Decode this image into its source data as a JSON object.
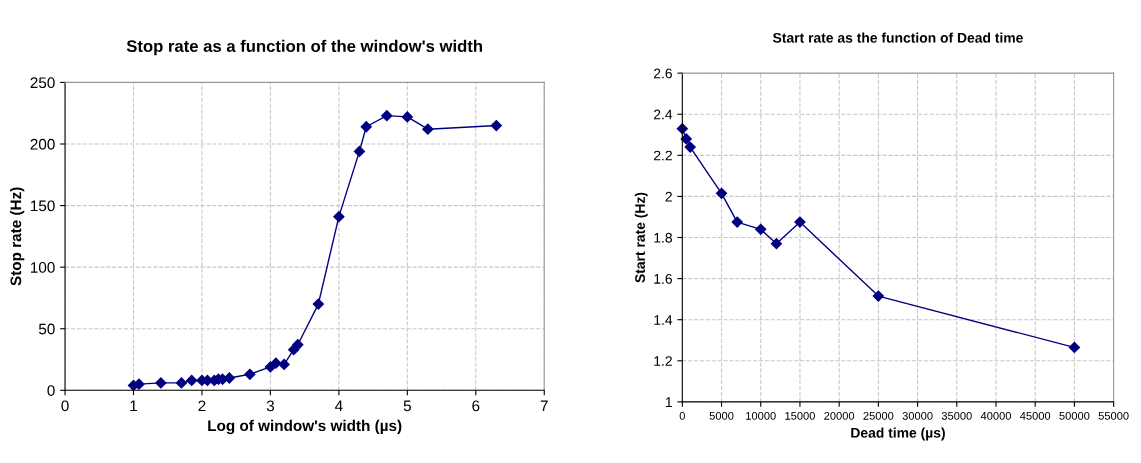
{
  "chart_data": [
    {
      "type": "line",
      "title": "Stop rate as a function of the window's width",
      "xlabel": "Log of window's width (µs)",
      "ylabel": "Stop rate (Hz)",
      "x": [
        1,
        1.08,
        1.4,
        1.7,
        1.85,
        2,
        2.08,
        2.18,
        2.24,
        2.3,
        2.4,
        2.7,
        3,
        3.08,
        3.2,
        3.34,
        3.4,
        3.7,
        4,
        4.3,
        4.4,
        4.7,
        5,
        5.3,
        6.3
      ],
      "series": [
        {
          "color": "#000080",
          "values": [
            4,
            5,
            6,
            6,
            8,
            8,
            8,
            8,
            9,
            9,
            10,
            13,
            19,
            22,
            21,
            33,
            37,
            70,
            141,
            194,
            214,
            223,
            222,
            212,
            215
          ]
        }
      ],
      "xlim": [
        0,
        7
      ],
      "xticks": [
        0,
        1,
        2,
        3,
        4,
        5,
        6,
        7
      ],
      "ylim": [
        0,
        250
      ],
      "yticks": [
        0,
        50,
        100,
        150,
        200,
        250
      ],
      "grid": true,
      "marker": "diamond",
      "line_style": "solid",
      "legend": false
    },
    {
      "type": "line",
      "title": "Start rate as the function of Dead time",
      "xlabel": "Dead time (µs)",
      "ylabel": "Start rate (Hz)",
      "x": [
        0,
        500,
        1000,
        5000,
        7000,
        10000,
        12000,
        15000,
        25000,
        50000
      ],
      "series": [
        {
          "color": "#000080",
          "values": [
            2.33,
            2.28,
            2.24,
            2.015,
            1.875,
            1.84,
            1.77,
            1.875,
            1.515,
            1.265
          ]
        }
      ],
      "xlim": [
        0,
        55000
      ],
      "xticks": [
        0,
        5000,
        10000,
        15000,
        20000,
        25000,
        30000,
        35000,
        40000,
        45000,
        50000,
        55000
      ],
      "ylim": [
        1,
        2.6
      ],
      "yticks": [
        1,
        1.2,
        1.4,
        1.6,
        1.8,
        2,
        2.2,
        2.4,
        2.6
      ],
      "grid": true,
      "marker": "diamond",
      "line_style": "solid",
      "legend": false
    }
  ]
}
